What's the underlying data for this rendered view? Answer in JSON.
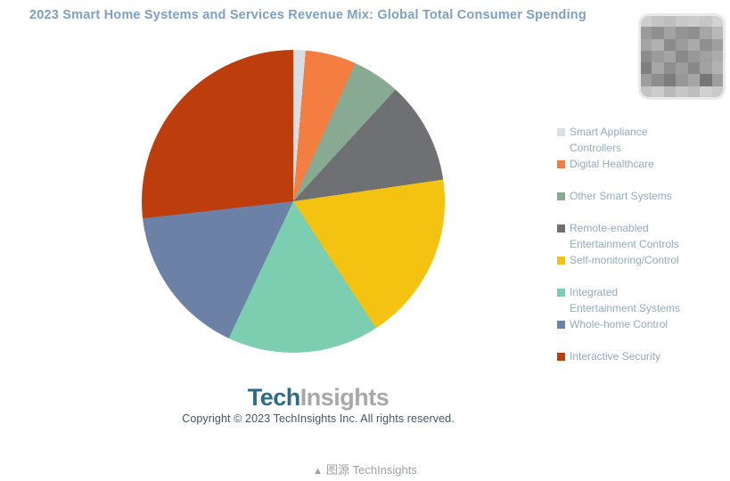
{
  "chart": {
    "title": "2023 Smart Home Systems and Services Revenue Mix: Global Total Consumer Spending",
    "title_color": "#7da0c3",
    "legend_text_color": "#94a9bc",
    "legend": {
      "items": [
        {
          "line1": "Smart Appliance",
          "line2": "Controllers"
        },
        {
          "line1": "Digital Healthcare",
          "line2": ""
        },
        {
          "line1": "Other Smart Systems",
          "line2": ""
        },
        {
          "line1": "Remote-enabled",
          "line2": "Entertainment Controls"
        },
        {
          "line1": "Self-monitoring/Control",
          "line2": ""
        },
        {
          "line1": "Integrated",
          "line2": "Entertainment Systems"
        },
        {
          "line1": "Whole-home Control",
          "line2": ""
        },
        {
          "line1": "Interactive Security",
          "line2": ""
        }
      ]
    },
    "logo": {
      "part1": "Tech",
      "part2": "Insights",
      "part1_color": "#2d6c88",
      "part2_color": "#a6a8ab"
    },
    "copyright": "Copyright © 2023 TechInsights Inc.  All rights reserved.",
    "copyright_color": "#44546a"
  },
  "chart_data": {
    "type": "pie",
    "title": "2023 Smart Home Systems and Services Revenue Mix: Global Total Consumer Spending",
    "legend_position": "right",
    "start_angle_deg": 0,
    "direction": "clockwise",
    "categories": [
      "Smart Appliance Controllers",
      "Digital Healthcare",
      "Other Smart Systems",
      "Remote-enabled Entertainment Controls",
      "Self-monitoring/Control",
      "Integrated Entertainment Systems",
      "Whole-home Control",
      "Interactive Security"
    ],
    "values": [
      1.3,
      5.4,
      5.1,
      10.9,
      18.1,
      16.2,
      16.2,
      26.8
    ],
    "units": "% share (estimated from slice angles; no data labels shown)",
    "colors": [
      "#d9dde4",
      "#f47d42",
      "#88aa92",
      "#6f7073",
      "#f4c211",
      "#7bcfb0",
      "#6b81a5",
      "#bd3d0d"
    ]
  },
  "caption": {
    "icon": "▲",
    "text": "图源 TechInsights",
    "color": "#9aa0a5"
  },
  "mosaic": {
    "rows": [
      [
        "#cdcdcd",
        "#c4c4c4",
        "#bebebe",
        "#c8c8c8",
        "#cbcbcb",
        "#c6c6c6",
        "#d2d2d2"
      ],
      [
        "#9b9b9b",
        "#8f8f8f",
        "#a3a3a3",
        "#949494",
        "#8e8e8e",
        "#a6a6a6",
        "#b8b8b8"
      ],
      [
        "#a5a5a5",
        "#b1b1b1",
        "#8b8b8b",
        "#9c9c9c",
        "#ababab",
        "#8f8f8f",
        "#9f9f9f"
      ],
      [
        "#8d8d8d",
        "#9b9b9b",
        "#a4a4a4",
        "#898989",
        "#989898",
        "#a1a1a1",
        "#acacac"
      ],
      [
        "#7e7e7e",
        "#a7a7a7",
        "#8f8f8f",
        "#9d9d9d",
        "#888888",
        "#a2a2a2",
        "#b3b3b3"
      ],
      [
        "#9d9d9d",
        "#8e8e8e",
        "#7d7d7d",
        "#989898",
        "#a6a6a6",
        "#767676",
        "#9e9e9e"
      ],
      [
        "#c3c3c3",
        "#cccccc",
        "#b9b9b9",
        "#c6c6c6",
        "#bebebe",
        "#d1d1d1",
        "#c8c8c8"
      ]
    ]
  }
}
